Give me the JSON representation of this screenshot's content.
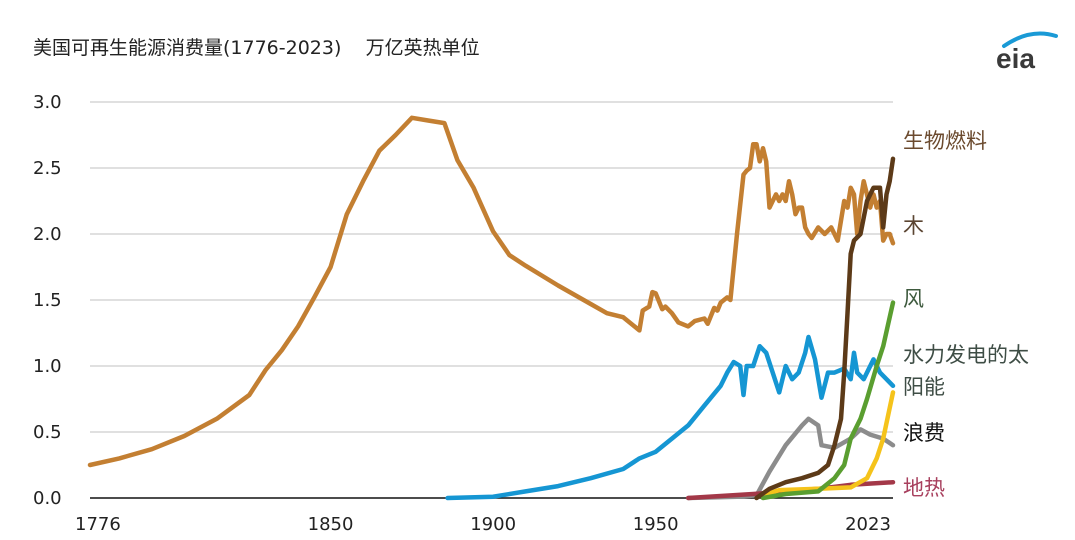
{
  "title": "美国可再生能源消费量(1776-2023)",
  "unit": "万亿英热单位",
  "logo": "eia",
  "chart_data": {
    "type": "line",
    "title": "美国可再生能源消费量(1776-2023)",
    "ylabel": "万亿英热单位",
    "xlim": [
      1776,
      2023
    ],
    "ylim": [
      0,
      3.0
    ],
    "grid": true,
    "legend": "right (direct labels)",
    "x_ticks": [
      "1776",
      "1850",
      "1900",
      "1950",
      "2023"
    ],
    "y_ticks": [
      "0.0",
      "0.5",
      "1.0",
      "1.5",
      "2.0",
      "2.5",
      "3.0"
    ],
    "series": [
      {
        "name": "木",
        "color": "#c37f32",
        "label_color": "#5b4532",
        "x": [
          1776,
          1785,
          1795,
          1805,
          1815,
          1825,
          1830,
          1835,
          1840,
          1845,
          1850,
          1855,
          1860,
          1865,
          1870,
          1875,
          1880,
          1885,
          1889,
          1894,
          1900,
          1905,
          1910,
          1920,
          1930,
          1935,
          1940,
          1945,
          1946,
          1948,
          1949,
          1950,
          1952,
          1953,
          1955,
          1957,
          1960,
          1962,
          1965,
          1966,
          1968,
          1969,
          1970,
          1972,
          1973,
          1975,
          1977,
          1978,
          1979,
          1980,
          1981,
          1982,
          1983,
          1984,
          1985,
          1986,
          1987,
          1988,
          1989,
          1990,
          1991,
          1992,
          1993,
          1994,
          1995,
          1996,
          1997,
          1998,
          2000,
          2002,
          2004,
          2006,
          2008,
          2009,
          2010,
          2011,
          2012,
          2013,
          2014,
          2016,
          2017,
          2018,
          2019,
          2020,
          2021,
          2022,
          2023
        ],
        "y": [
          0.25,
          0.3,
          0.37,
          0.47,
          0.6,
          0.78,
          0.97,
          1.12,
          1.3,
          1.52,
          1.75,
          2.15,
          2.4,
          2.63,
          2.75,
          2.88,
          2.86,
          2.84,
          2.56,
          2.35,
          2.02,
          1.84,
          1.76,
          1.61,
          1.47,
          1.4,
          1.37,
          1.27,
          1.42,
          1.45,
          1.56,
          1.55,
          1.43,
          1.45,
          1.4,
          1.33,
          1.3,
          1.34,
          1.36,
          1.32,
          1.44,
          1.42,
          1.48,
          1.52,
          1.5,
          2.0,
          2.45,
          2.48,
          2.5,
          2.68,
          2.68,
          2.55,
          2.65,
          2.55,
          2.2,
          2.25,
          2.3,
          2.25,
          2.3,
          2.25,
          2.4,
          2.3,
          2.15,
          2.2,
          2.2,
          2.05,
          2.0,
          1.97,
          2.05,
          2.0,
          2.05,
          1.95,
          2.25,
          2.2,
          2.35,
          2.3,
          2.0,
          2.25,
          2.4,
          2.2,
          2.3,
          2.2,
          2.25,
          1.95,
          2.0,
          2.0,
          1.93
        ]
      },
      {
        "name": "水力发电的",
        "color": "#1596d3",
        "label_color": "#3e4d45",
        "x": [
          1886,
          1900,
          1910,
          1920,
          1930,
          1940,
          1945,
          1948,
          1950,
          1955,
          1960,
          1965,
          1970,
          1972,
          1974,
          1976,
          1977,
          1978,
          1980,
          1982,
          1984,
          1986,
          1988,
          1990,
          1992,
          1994,
          1996,
          1997,
          1999,
          2001,
          2003,
          2005,
          2008,
          2010,
          2011,
          2012,
          2014,
          2017,
          2019,
          2021,
          2023
        ],
        "y": [
          0.0,
          0.01,
          0.05,
          0.09,
          0.15,
          0.22,
          0.3,
          0.33,
          0.35,
          0.45,
          0.55,
          0.7,
          0.85,
          0.95,
          1.03,
          1.0,
          0.78,
          1.0,
          1.0,
          1.15,
          1.1,
          0.95,
          0.8,
          1.0,
          0.9,
          0.95,
          1.1,
          1.22,
          1.05,
          0.76,
          0.95,
          0.95,
          0.98,
          0.9,
          1.1,
          0.95,
          0.9,
          1.05,
          0.95,
          0.9,
          0.85
        ]
      },
      {
        "name": "浪费",
        "color": "#8c8c8c",
        "label_color": "#111111",
        "x": [
          1960,
          1975,
          1981,
          1985,
          1990,
          1995,
          1997,
          2000,
          2001,
          2005,
          2010,
          2013,
          2016,
          2020,
          2023
        ],
        "y": [
          0.0,
          0.01,
          0.02,
          0.2,
          0.4,
          0.55,
          0.6,
          0.55,
          0.4,
          0.38,
          0.45,
          0.52,
          0.48,
          0.45,
          0.4
        ]
      },
      {
        "name": "地热",
        "color": "#a33848",
        "label_color": "#a8405e",
        "x": [
          1960,
          1980,
          1990,
          2000,
          2010,
          2023
        ],
        "y": [
          0.0,
          0.03,
          0.05,
          0.07,
          0.1,
          0.12
        ]
      },
      {
        "name": "太阳能",
        "color": "#f5c31b",
        "label_color": "#3e4d45",
        "x": [
          1984,
          1988,
          2000,
          2010,
          2015,
          2018,
          2020,
          2023
        ],
        "y": [
          0.03,
          0.06,
          0.07,
          0.08,
          0.15,
          0.3,
          0.45,
          0.8
        ]
      },
      {
        "name": "风",
        "color": "#5a9e30",
        "label_color": "#3e5a3e",
        "x": [
          1983,
          1990,
          2000,
          2005,
          2008,
          2010,
          2013,
          2015,
          2018,
          2020,
          2023
        ],
        "y": [
          0.0,
          0.03,
          0.05,
          0.15,
          0.25,
          0.45,
          0.6,
          0.75,
          1.0,
          1.15,
          1.48
        ]
      },
      {
        "name": "生物燃料",
        "color": "#5c3a18",
        "label_color": "#6b4a2e",
        "x": [
          1981,
          1985,
          1990,
          1995,
          2000,
          2003,
          2005,
          2007,
          2008,
          2009,
          2010,
          2011,
          2013,
          2015,
          2017,
          2019,
          2020,
          2021,
          2022,
          2023
        ],
        "y": [
          0.0,
          0.07,
          0.12,
          0.15,
          0.19,
          0.25,
          0.4,
          0.6,
          0.95,
          1.4,
          1.85,
          1.95,
          2.0,
          2.25,
          2.35,
          2.35,
          2.05,
          2.3,
          2.4,
          2.57
        ]
      }
    ],
    "labels": [
      {
        "text": "生物燃料",
        "series": "生物燃料"
      },
      {
        "text": "木",
        "series": "木"
      },
      {
        "text": "风",
        "series": "风"
      },
      {
        "text": "水力发电的太",
        "series": "水力发电的"
      },
      {
        "text": "阳能",
        "series": "太阳能"
      },
      {
        "text": "浪费",
        "series": "浪费"
      },
      {
        "text": "地热",
        "series": "地热"
      }
    ]
  }
}
